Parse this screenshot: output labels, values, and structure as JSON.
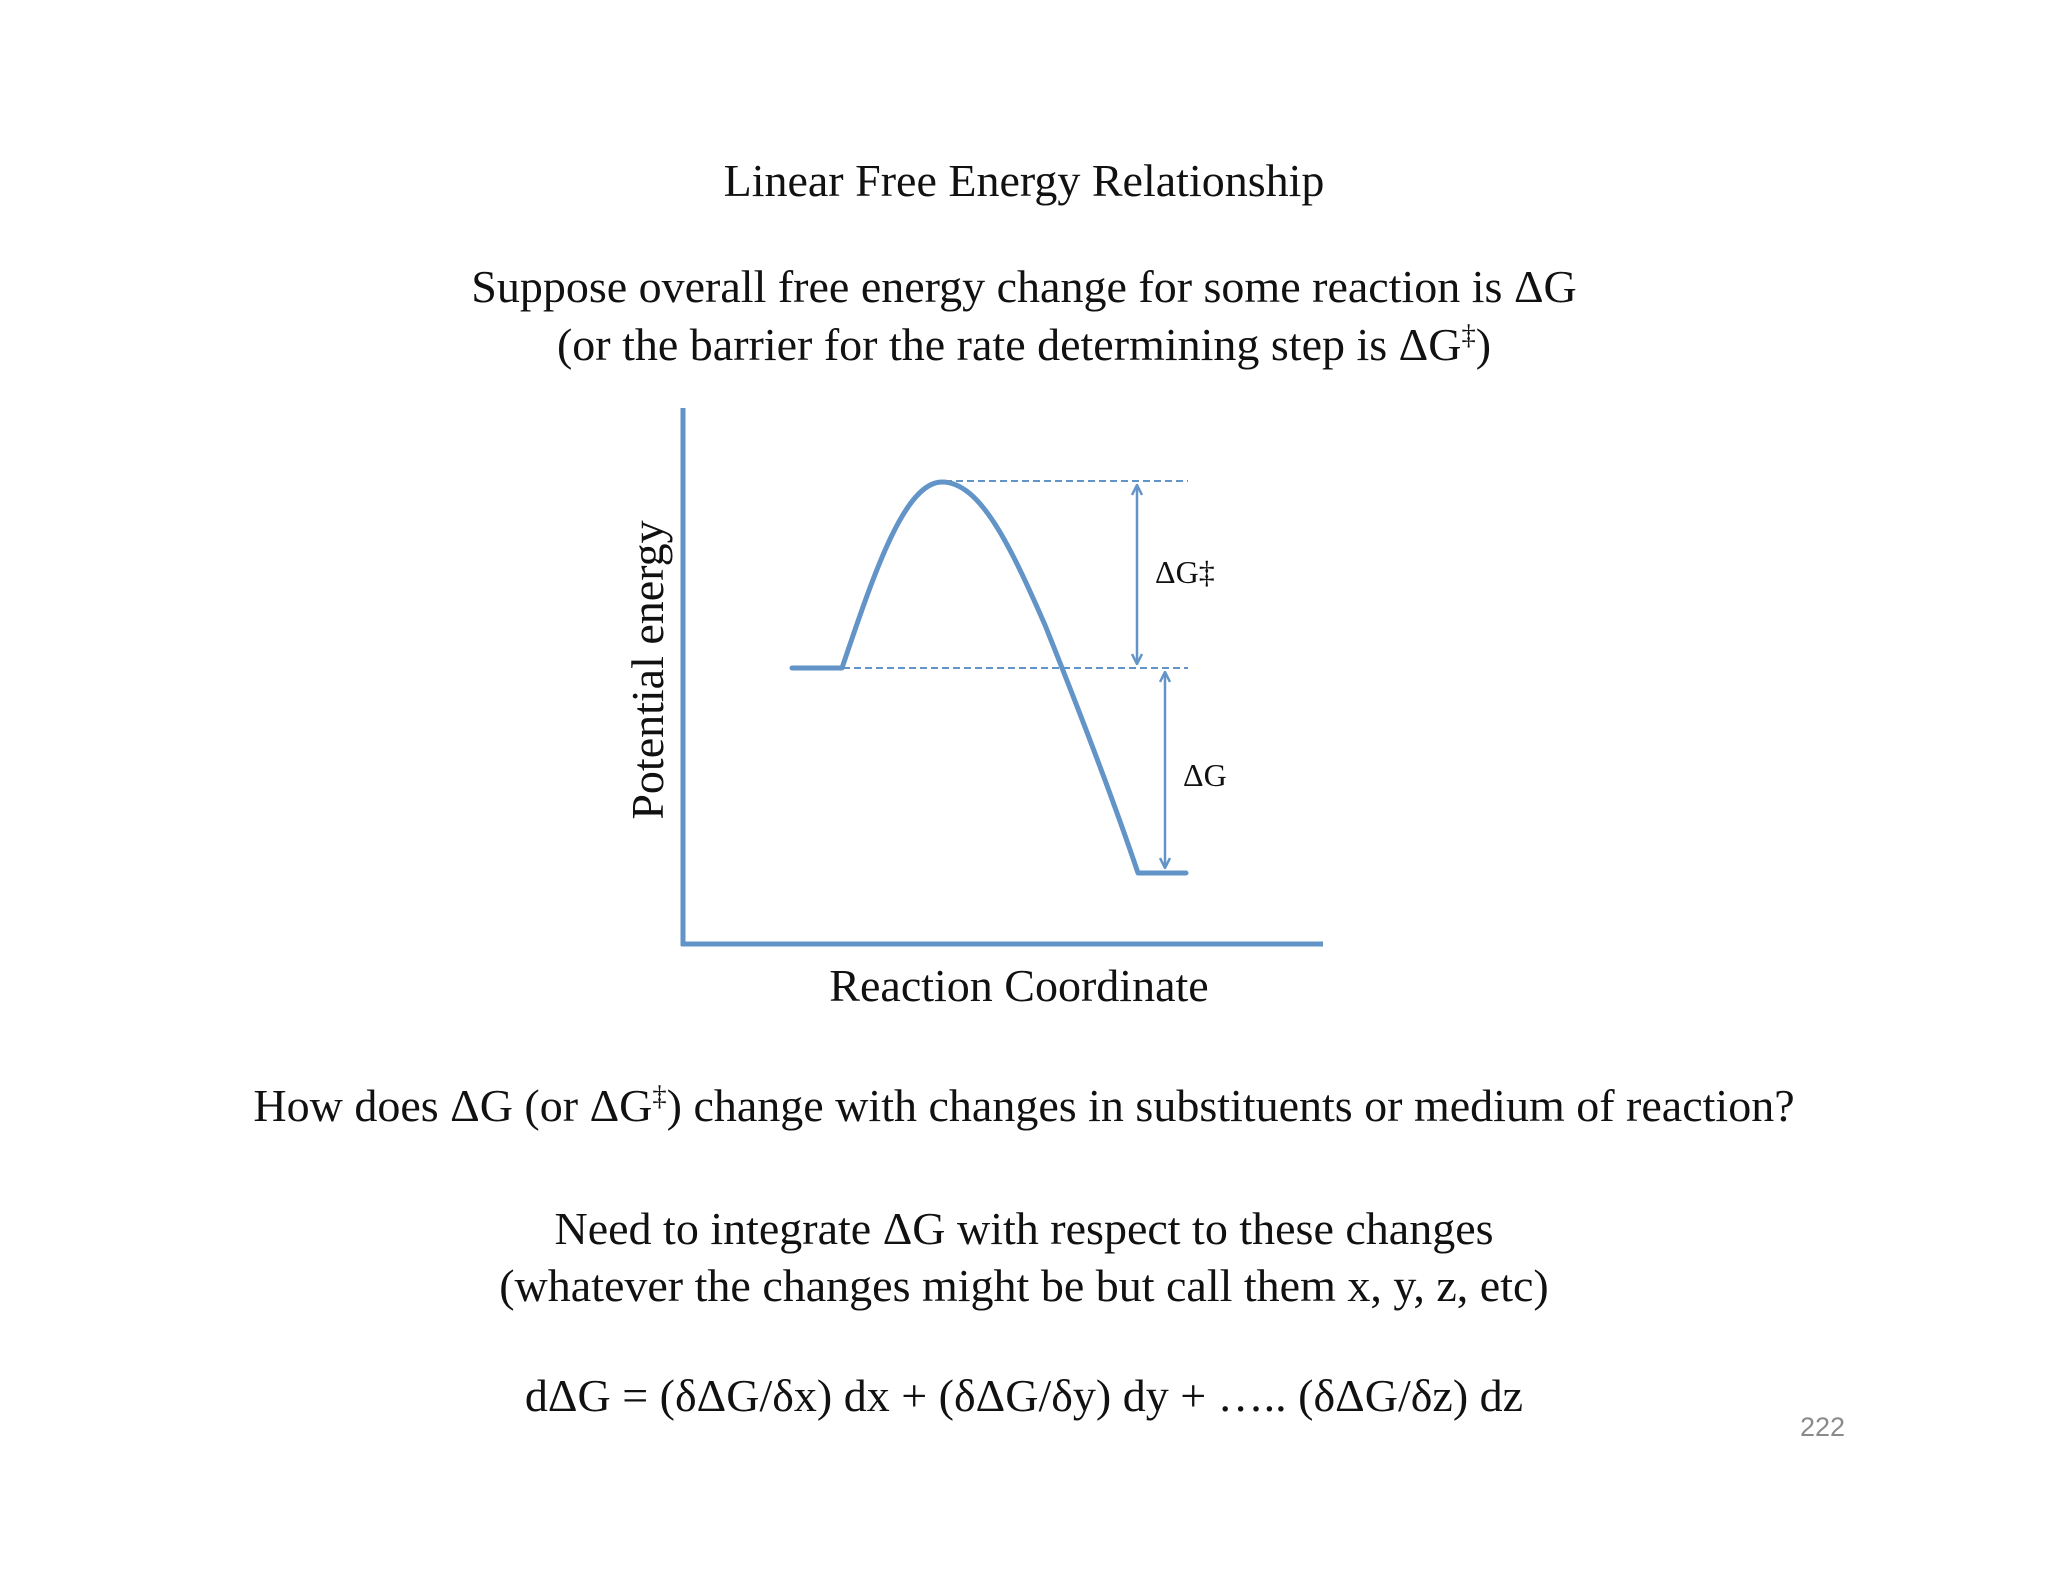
{
  "title": "Linear Free Energy Relationship",
  "intro": {
    "line1": "Suppose overall free energy change for some reaction is ΔG",
    "line2_pre": "(or the barrier for the rate determining step is ΔG",
    "line2_sup": "‡",
    "line2_post": ")"
  },
  "diagram": {
    "y_axis_label": "Potential energy",
    "x_axis_label": "Reaction Coordinate",
    "barrier_label": "ΔG‡",
    "energy_label": "ΔG",
    "curve_color": "#6394c8"
  },
  "question": {
    "pre": "How does ΔG (or ΔG",
    "sup": "‡",
    "post": ") change with changes in substituents or medium of reaction?"
  },
  "need": {
    "line1": "Need to integrate ΔG with respect to these changes",
    "line2": "(whatever the changes might be but call them x, y, z, etc)"
  },
  "equation": "dΔG = (δΔG/δx) dx + (δΔG/δy) dy + ….. (δΔG/δz) dz",
  "slide_number": "222"
}
